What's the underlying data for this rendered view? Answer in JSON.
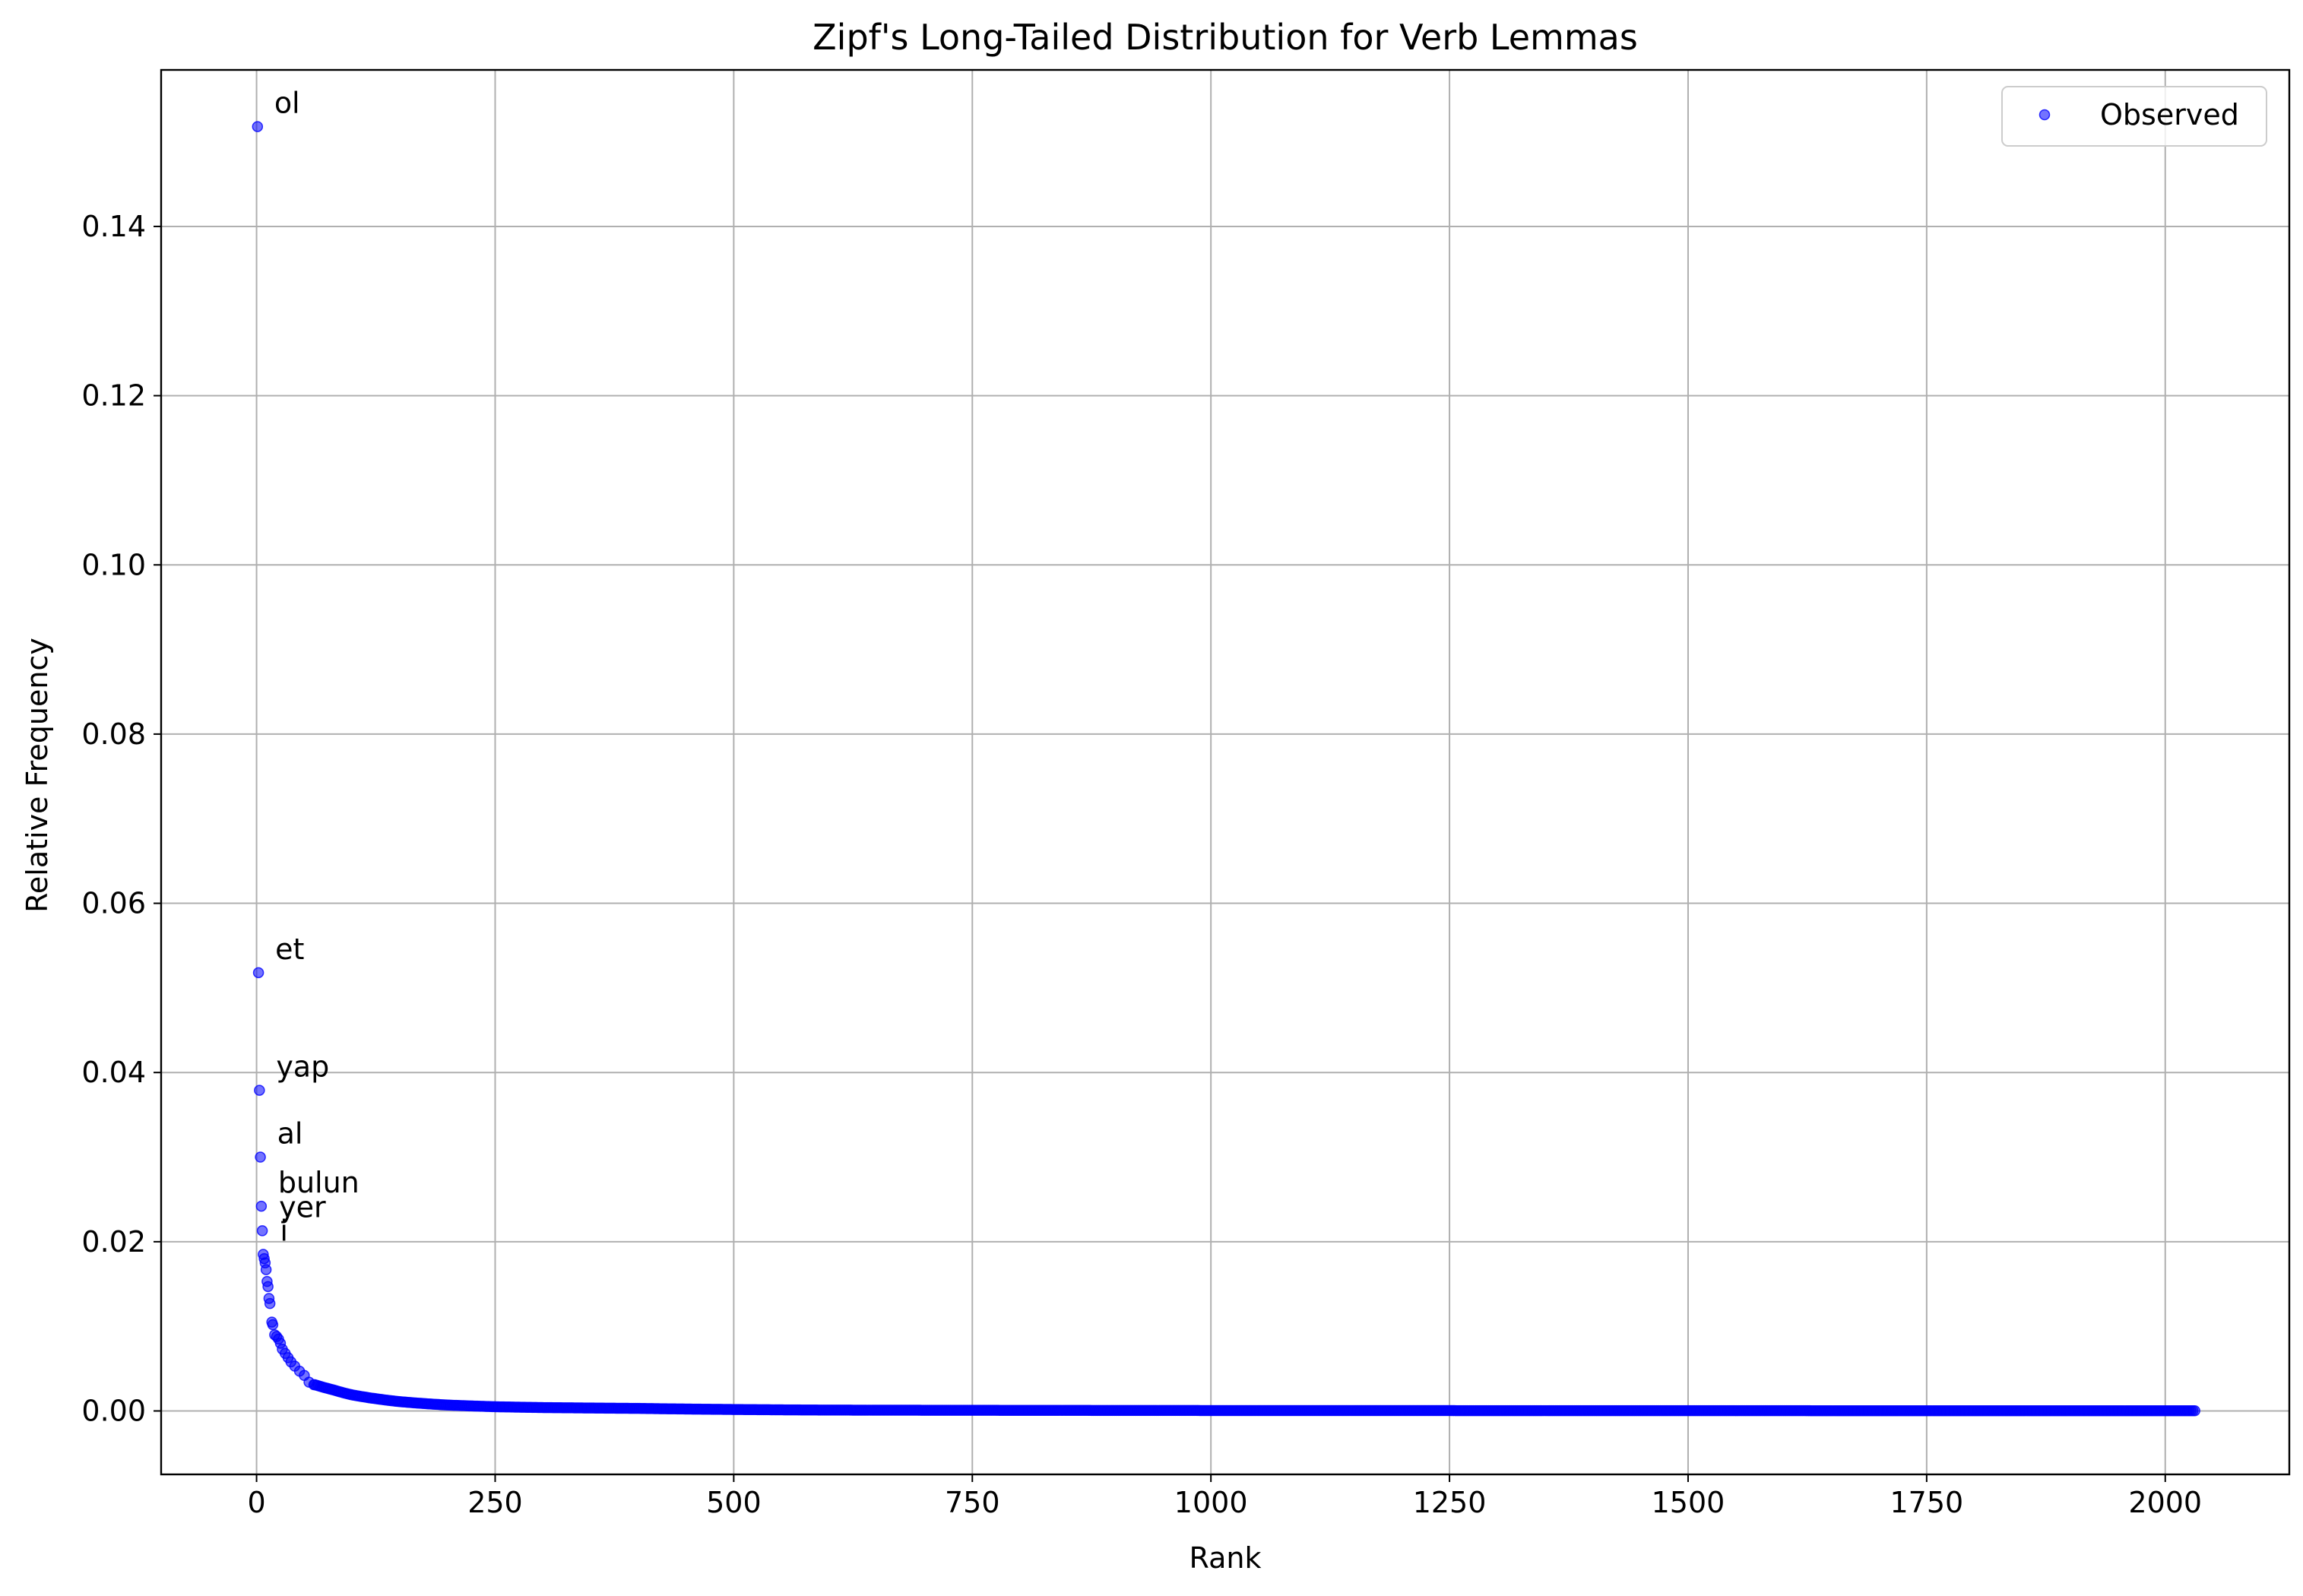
{
  "chart_data": {
    "type": "scatter",
    "title": "Zipf's Long-Tailed Distribution for Verb Lemmas",
    "xlabel": "Rank",
    "ylabel": "Relative Frequency",
    "xlim": [
      -100,
      2130
    ],
    "ylim": [
      -0.0075,
      0.1585
    ],
    "xticks": [
      0,
      250,
      500,
      750,
      1000,
      1250,
      1500,
      1750,
      2000
    ],
    "yticks": [
      0.0,
      0.02,
      0.04,
      0.06,
      0.08,
      0.1,
      0.12,
      0.14
    ],
    "xtick_labels": [
      "0",
      "250",
      "500",
      "750",
      "1000",
      "1250",
      "1500",
      "1750",
      "2000"
    ],
    "ytick_labels": [
      "0.00",
      "0.02",
      "0.04",
      "0.06",
      "0.08",
      "0.10",
      "0.12",
      "0.14"
    ],
    "grid": true,
    "legend_position": "top-right",
    "marker_color": "#0000ff",
    "series": [
      {
        "name": "Observed",
        "head_points": [
          {
            "x": 1,
            "y": 0.1518
          },
          {
            "x": 2,
            "y": 0.0518
          },
          {
            "x": 3,
            "y": 0.0379
          },
          {
            "x": 4,
            "y": 0.03
          },
          {
            "x": 5,
            "y": 0.0242
          },
          {
            "x": 6,
            "y": 0.0213
          },
          {
            "x": 7,
            "y": 0.0185
          },
          {
            "x": 8,
            "y": 0.018
          },
          {
            "x": 9,
            "y": 0.0175
          },
          {
            "x": 10,
            "y": 0.0167
          },
          {
            "x": 11,
            "y": 0.0153
          },
          {
            "x": 12,
            "y": 0.0147
          },
          {
            "x": 13,
            "y": 0.0133
          },
          {
            "x": 14,
            "y": 0.0127
          },
          {
            "x": 16,
            "y": 0.0105
          },
          {
            "x": 17,
            "y": 0.0102
          },
          {
            "x": 19,
            "y": 0.009
          },
          {
            "x": 21,
            "y": 0.0088
          },
          {
            "x": 23,
            "y": 0.0085
          },
          {
            "x": 25,
            "y": 0.008
          },
          {
            "x": 27,
            "y": 0.0073
          },
          {
            "x": 30,
            "y": 0.0068
          },
          {
            "x": 33,
            "y": 0.0063
          },
          {
            "x": 36,
            "y": 0.0058
          },
          {
            "x": 40,
            "y": 0.0053
          },
          {
            "x": 45,
            "y": 0.0047
          },
          {
            "x": 50,
            "y": 0.0042
          },
          {
            "x": 55,
            "y": 0.0034
          },
          {
            "x": 60,
            "y": 0.0031
          }
        ],
        "tail": {
          "rank_range": [
            61,
            2032
          ],
          "approx_values": [
            {
              "x": 61,
              "y": 0.0031
            },
            {
              "x": 80,
              "y": 0.0025
            },
            {
              "x": 100,
              "y": 0.0019
            },
            {
              "x": 150,
              "y": 0.0011
            },
            {
              "x": 200,
              "y": 0.0007
            },
            {
              "x": 250,
              "y": 0.0005
            },
            {
              "x": 300,
              "y": 0.0004
            },
            {
              "x": 400,
              "y": 0.0003
            },
            {
              "x": 600,
              "y": 0.0001
            },
            {
              "x": 1000,
              "y": 5e-05
            },
            {
              "x": 2032,
              "y": 2e-05
            }
          ]
        }
      }
    ],
    "annotations": [
      {
        "text": "ol",
        "x": 1,
        "y": 0.1518
      },
      {
        "text": "et",
        "x": 2,
        "y": 0.0518
      },
      {
        "text": "yap",
        "x": 3,
        "y": 0.0379
      },
      {
        "text": "al",
        "x": 4,
        "y": 0.03
      },
      {
        "text": "bulun",
        "x": 5,
        "y": 0.0242
      },
      {
        "text": "yer",
        "x": 6,
        "y": 0.0213
      },
      {
        "text": "i",
        "x": 7,
        "y": 0.0185
      }
    ]
  }
}
